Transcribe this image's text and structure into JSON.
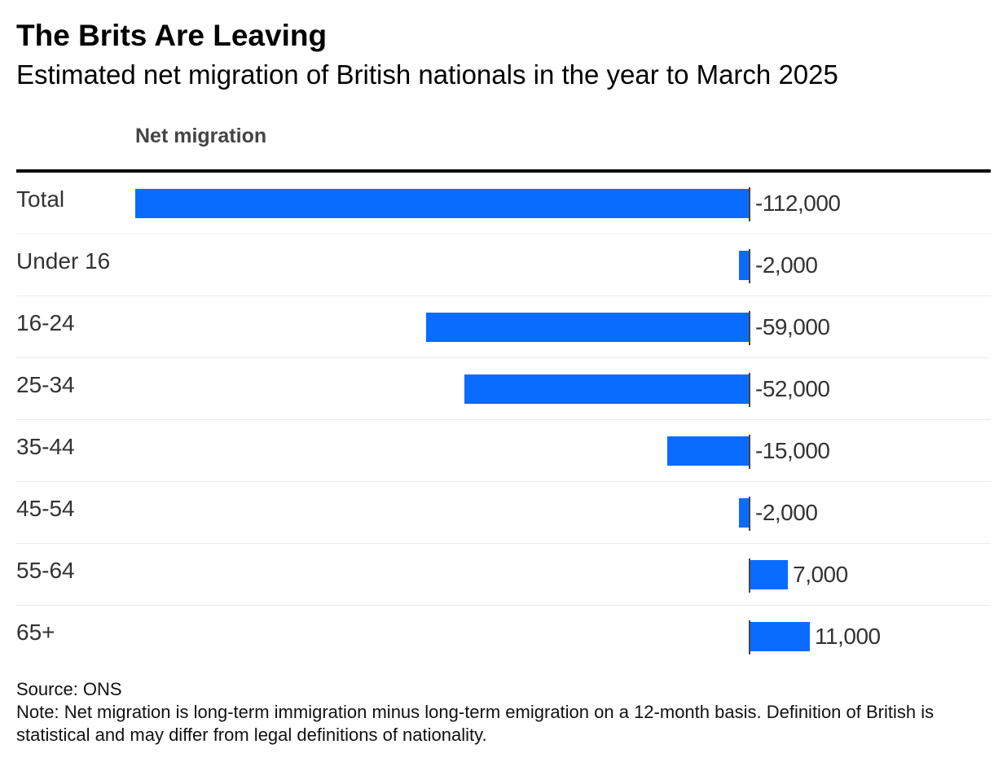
{
  "title": "The Brits Are Leaving",
  "subtitle": "Estimated net migration of British nationals in the year to March 2025",
  "column_header": "Net migration",
  "source": "Source: ONS",
  "note": "Note: Net migration is long-term immigration minus long-term emigration on a 12-month basis. Definition of British is statistical and may differ from legal definitions of nationality.",
  "colors": {
    "bar": "#0a6cff",
    "zero_line": "#444444",
    "header_rule": "#000000",
    "row_divider": "#ebebeb",
    "text": "#333333"
  },
  "chart_data": {
    "type": "bar",
    "orientation": "horizontal",
    "title": "The Brits Are Leaving",
    "subtitle": "Estimated net migration of British nationals in the year to March 2025",
    "xlabel": "Net migration",
    "ylabel": "",
    "xlim": [
      -112000,
      25000
    ],
    "grid": false,
    "legend": "none",
    "categories": [
      "Total",
      "Under 16",
      "16-24",
      "25-34",
      "35-44",
      "45-54",
      "55-64",
      "65+"
    ],
    "values": [
      -112000,
      -2000,
      -59000,
      -52000,
      -15000,
      -2000,
      7000,
      11000
    ],
    "value_labels": [
      "-112,000",
      "-2,000",
      "-59,000",
      "-52,000",
      "-15,000",
      "-2,000",
      "7,000",
      "11,000"
    ]
  }
}
